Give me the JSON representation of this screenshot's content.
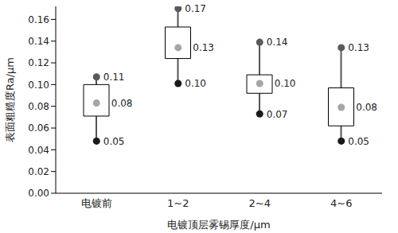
{
  "chart_data": {
    "type": "box",
    "x_label": "电镀顶层雾锡厚度/μm",
    "y_label": "表面粗糙度Ra/μm",
    "categories": [
      "电镀前",
      "1~2",
      "2~4",
      "4~6"
    ],
    "max": {
      "values": [
        0.107,
        0.17,
        0.139,
        0.134
      ],
      "value_labels": [
        "0.11",
        "0.17",
        "0.14",
        "0.13"
      ],
      "color": "#5a5a5a",
      "marker": "circle"
    },
    "mean": {
      "values": [
        0.083,
        0.134,
        0.101,
        0.079
      ],
      "value_labels": [
        "0.08",
        "0.13",
        "0.10",
        "0.08"
      ],
      "color": "#a6a6a6",
      "marker": "circle"
    },
    "min": {
      "values": [
        0.048,
        0.101,
        0.073,
        0.048
      ],
      "value_labels": [
        "0.05",
        "0.10",
        "0.07",
        "0.05"
      ],
      "color": "#1a1a1a",
      "marker": "circle"
    },
    "box_low": [
      0.071,
      0.124,
      0.092,
      0.062
    ],
    "box_high": [
      0.1,
      0.153,
      0.109,
      0.097
    ],
    "ylim": [
      0,
      0.172
    ],
    "yticks": [
      {
        "value": 0,
        "label": "0.00"
      },
      {
        "value": 0.02,
        "label": "0.02"
      },
      {
        "value": 0.04,
        "label": "0.04"
      },
      {
        "value": 0.06,
        "label": "0.06"
      },
      {
        "value": 0.08,
        "label": "0.08"
      },
      {
        "value": 0.1,
        "label": "0.10"
      },
      {
        "value": 0.12,
        "label": "0.12"
      },
      {
        "value": 0.14,
        "label": "0.14"
      },
      {
        "value": 0.16,
        "label": "0.16"
      }
    ],
    "grid": false,
    "data_labels": true
  }
}
